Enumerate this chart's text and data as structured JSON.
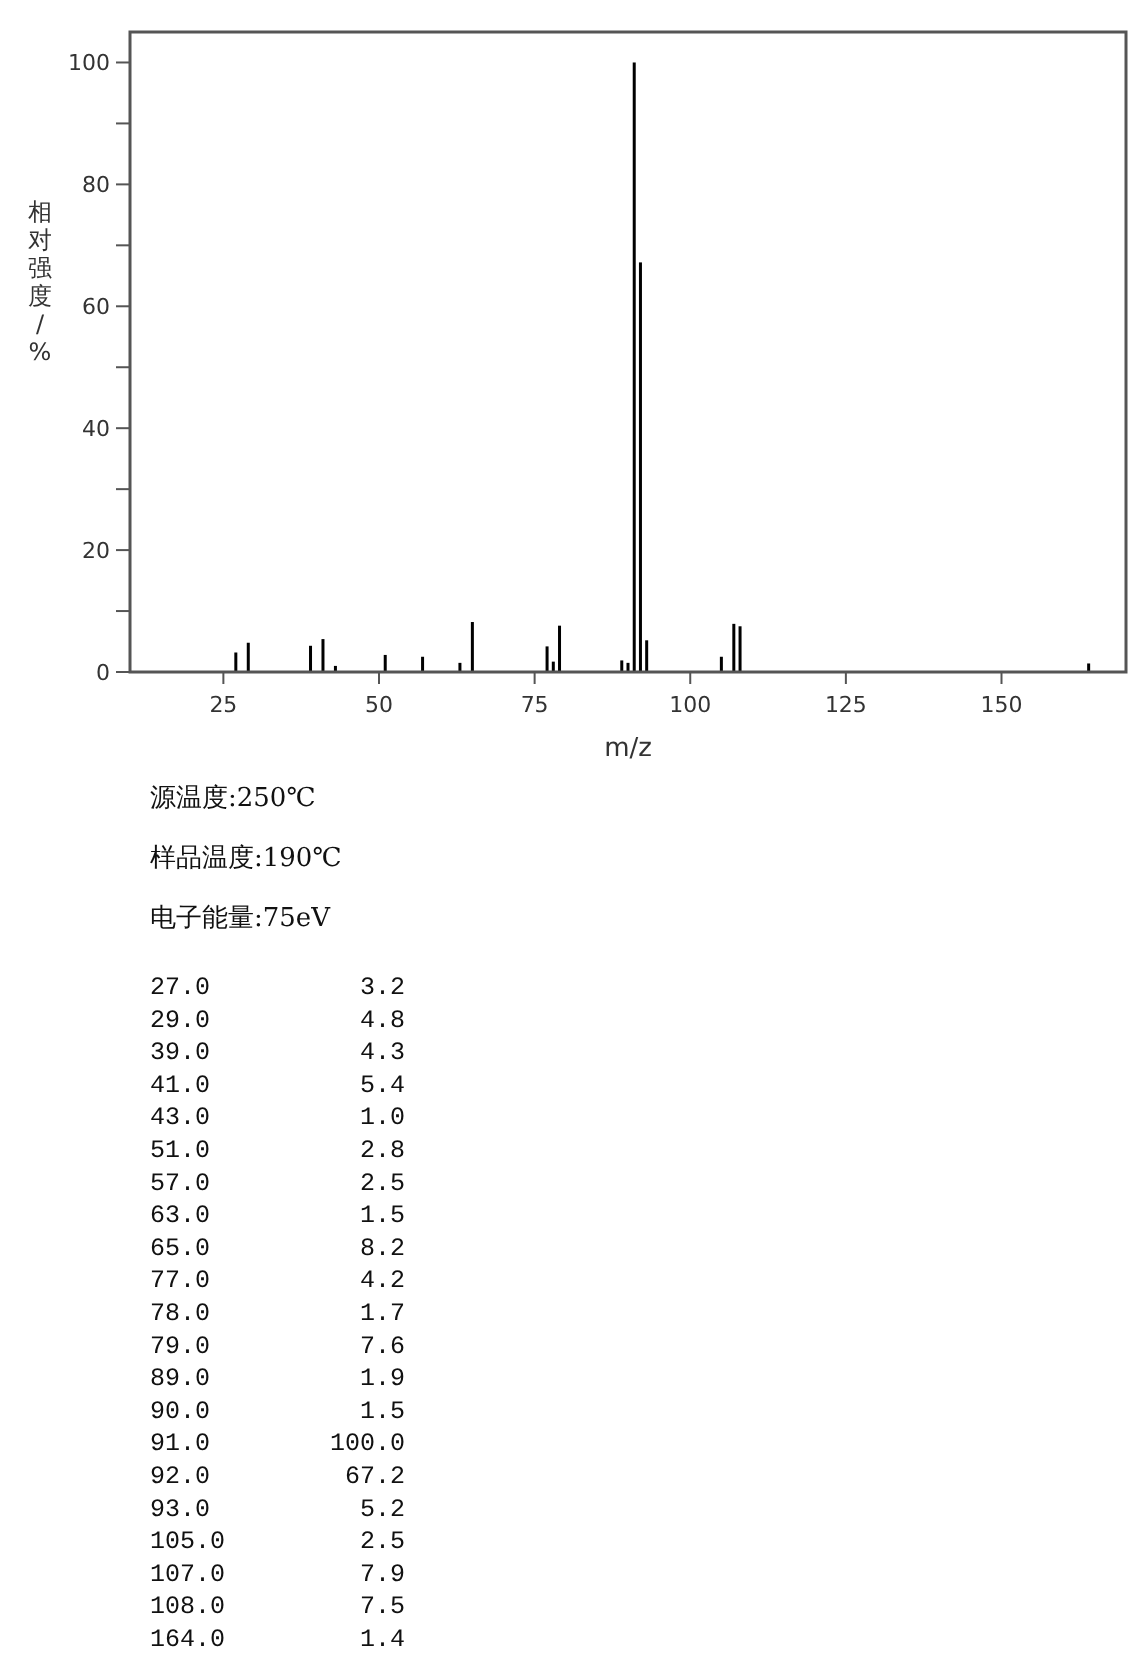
{
  "chart_data": {
    "type": "bar",
    "xlabel": "m/z",
    "ylabel": "相对强度/%",
    "x": [
      27,
      29,
      39,
      41,
      43,
      51,
      57,
      63,
      65,
      77,
      78,
      79,
      89,
      90,
      91,
      92,
      93,
      105,
      107,
      108,
      164
    ],
    "values": [
      3.2,
      4.8,
      4.3,
      5.4,
      1.0,
      2.8,
      2.5,
      1.5,
      8.2,
      4.2,
      1.7,
      7.6,
      1.9,
      1.5,
      100.0,
      67.2,
      5.2,
      2.5,
      7.9,
      7.5,
      1.4
    ],
    "color": "#000000",
    "xlim": [
      10,
      170
    ],
    "xticks": [
      25,
      50,
      75,
      100,
      125,
      150
    ],
    "ylim": [
      0,
      105
    ],
    "yticks": [
      0,
      {
        "value": 10,
        "label": null
      },
      20,
      {
        "value": 30,
        "label": null
      },
      40,
      {
        "value": 50,
        "label": null
      },
      60,
      {
        "value": 70,
        "label": null
      },
      80,
      {
        "value": 90,
        "label": null
      },
      100
    ],
    "grid": false,
    "annotations": [
      "源温度:250℃",
      "样品温度:190℃",
      "电子能量:75eV",
      "27.0          3.2",
      "29.0          4.8",
      "39.0          4.3",
      "41.0          5.4",
      "43.0          1.0",
      "51.0          2.8",
      "57.0          2.5",
      "63.0          1.5",
      "65.0          8.2",
      "77.0          4.2",
      "78.0          1.7",
      "79.0          7.6",
      "89.0          1.9",
      "90.0          1.5",
      "91.0        100.0",
      "92.0         67.2",
      "93.0          5.2",
      "105.0         2.5",
      "107.0         7.9",
      "108.0         7.5",
      "164.0         1.4"
    ]
  }
}
